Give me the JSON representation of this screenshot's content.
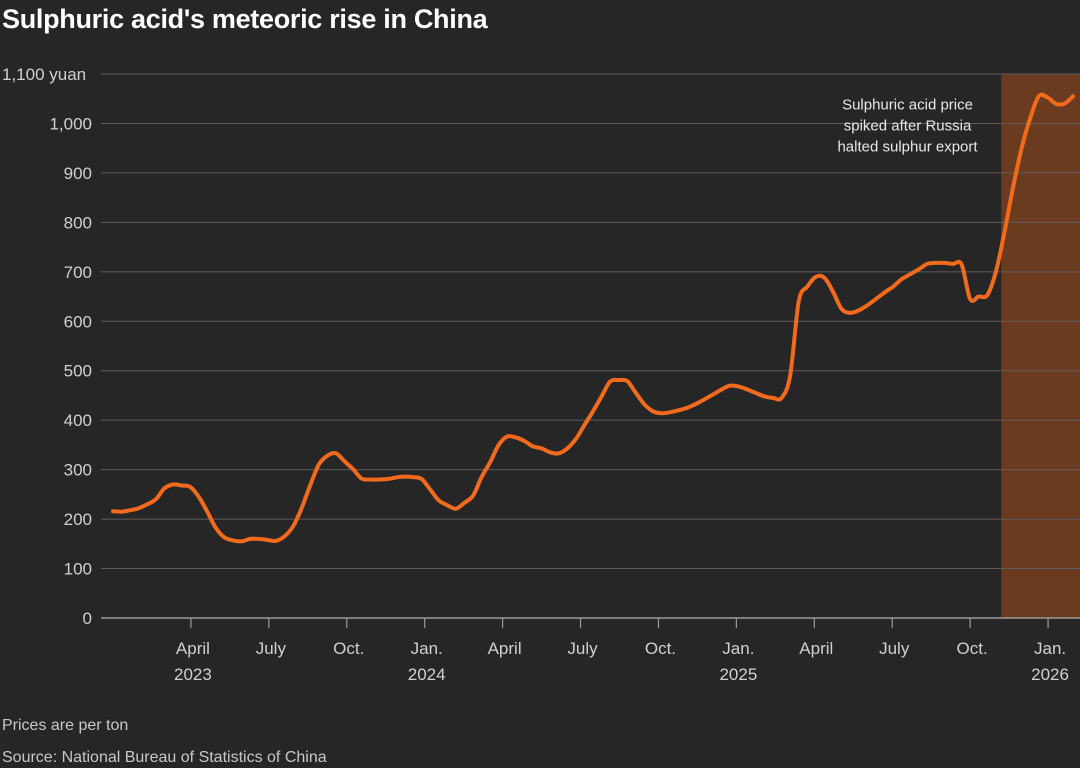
{
  "title": "Sulphuric acid's meteoric rise in China",
  "footnote": "Prices are per ton",
  "source": "Source: National Bureau of Statistics of China",
  "colors": {
    "background": "#262626",
    "line": "#f26b1d",
    "highlight": "#6b3b1f",
    "grid": "#5e5e5e",
    "text": "#d0d0d0"
  },
  "chart_data": {
    "type": "line",
    "title": "Sulphuric acid's meteoric rise in China",
    "ylabel": "yuan",
    "ylim": [
      0,
      1100
    ],
    "yticks": [
      0,
      100,
      200,
      300,
      400,
      500,
      600,
      700,
      800,
      900,
      1000,
      1100
    ],
    "ytick_labels": [
      "0",
      "100",
      "200",
      "300",
      "400",
      "500",
      "600",
      "700",
      "800",
      "900",
      "1,000",
      "1,100 yuan"
    ],
    "xlim": [
      0,
      124
    ],
    "xticks": [
      {
        "t": 10,
        "label": "April",
        "year": "2023"
      },
      {
        "t": 20,
        "label": "July",
        "year": ""
      },
      {
        "t": 30,
        "label": "Oct.",
        "year": ""
      },
      {
        "t": 40,
        "label": "Jan.",
        "year": "2024"
      },
      {
        "t": 50,
        "label": "April",
        "year": ""
      },
      {
        "t": 60,
        "label": "July",
        "year": ""
      },
      {
        "t": 70,
        "label": "Oct.",
        "year": ""
      },
      {
        "t": 80,
        "label": "Jan.",
        "year": "2025"
      },
      {
        "t": 90,
        "label": "April",
        "year": ""
      },
      {
        "t": 100,
        "label": "July",
        "year": ""
      },
      {
        "t": 110,
        "label": "Oct.",
        "year": ""
      },
      {
        "t": 120,
        "label": "Jan.",
        "year": "2026"
      }
    ],
    "shaded_region": {
      "start": 114,
      "end": 124
    },
    "annotation": {
      "lines": [
        "Sulphuric acid price",
        "spiked after Russia",
        "halted sulphur export"
      ],
      "t": 113,
      "y": 1040
    },
    "series": [
      {
        "name": "Sulphuric acid price",
        "x": [
          0.0,
          1.1,
          2.2,
          3.3,
          4.4,
          5.5,
          6.6,
          7.7,
          8.8,
          9.9,
          11.0,
          12.1,
          13.2,
          14.3,
          15.4,
          16.5,
          17.6,
          18.7,
          19.8,
          20.9,
          22.0,
          23.1,
          24.2,
          25.3,
          26.4,
          27.5,
          28.6,
          29.7,
          30.8,
          31.9,
          33.0,
          34.1,
          35.2,
          36.3,
          37.4,
          38.5,
          39.6,
          40.7,
          41.8,
          42.9,
          44.0,
          45.1,
          46.2,
          47.3,
          48.4,
          49.5,
          50.6,
          51.7,
          52.8,
          53.9,
          55.0,
          56.1,
          57.2,
          58.3,
          59.4,
          60.5,
          61.6,
          62.7,
          63.8,
          64.9,
          66.0,
          67.1,
          68.2,
          69.3,
          70.4,
          71.5,
          72.6,
          73.7,
          74.8,
          75.9,
          77.0,
          78.1,
          79.2,
          80.3,
          81.4,
          82.5,
          83.6,
          84.7,
          85.8,
          86.9,
          88.0,
          89.1,
          90.2,
          91.3,
          92.4,
          93.5,
          94.6,
          95.7,
          96.8,
          97.9,
          99.0,
          100.1,
          101.2,
          102.3,
          103.4,
          104.5,
          105.6,
          106.7,
          107.8,
          108.9,
          110.0,
          111.1,
          112.2,
          113.3,
          114.4,
          115.5,
          116.6,
          117.7,
          118.8,
          119.9,
          121.0,
          122.1,
          123.2
        ],
        "values": [
          216,
          215,
          218,
          222,
          230,
          240,
          262,
          270,
          268,
          265,
          245,
          215,
          182,
          163,
          157,
          155,
          160,
          160,
          158,
          156,
          165,
          185,
          222,
          268,
          310,
          328,
          333,
          317,
          301,
          282,
          280,
          280,
          281,
          284,
          286,
          285,
          281,
          260,
          238,
          228,
          221,
          233,
          247,
          285,
          315,
          350,
          367,
          365,
          358,
          347,
          343,
          335,
          333,
          343,
          362,
          390,
          418,
          448,
          478,
          481,
          479,
          455,
          432,
          418,
          414,
          416,
          420,
          425,
          433,
          442,
          452,
          462,
          470,
          468,
          462,
          455,
          448,
          445,
          445,
          490,
          640,
          670,
          690,
          688,
          660,
          625,
          617,
          622,
          632,
          645,
          658,
          670,
          685,
          695,
          705,
          716,
          718,
          718,
          716,
          715,
          645,
          650,
          653,
          700,
          780,
          870,
          950,
          1010,
          1055,
          1053,
          1040,
          1040,
          1055
        ]
      }
    ]
  }
}
